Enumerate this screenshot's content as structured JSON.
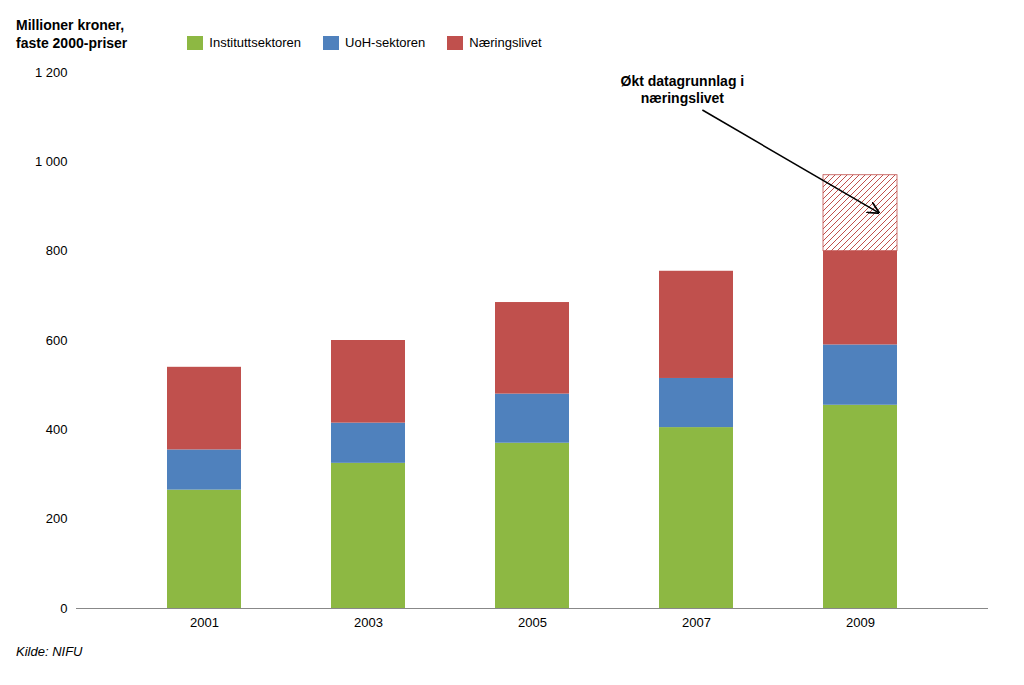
{
  "chart_data": {
    "type": "bar",
    "stacked": true,
    "ylabel": "Millioner kroner,\nfaste 2000-priser",
    "caption": "Kilde: NIFU",
    "categories": [
      "2001",
      "2003",
      "2005",
      "2007",
      "2009"
    ],
    "series": [
      {
        "name": "Instituttsektoren",
        "color": "#8db843",
        "values": [
          265,
          325,
          370,
          405,
          455
        ]
      },
      {
        "name": "UoH-sektoren",
        "color": "#4f81bd",
        "values": [
          90,
          90,
          110,
          110,
          135
        ]
      },
      {
        "name": "Næringslivet",
        "color": "#c0504d",
        "values": [
          185,
          185,
          205,
          240,
          210
        ]
      },
      {
        "color": "#c0504d",
        "values": [
          0,
          0,
          0,
          0,
          170
        ]
      }
    ],
    "annotations": [
      {
        "text": "Økt datagrunnlag i\nnæringslivet"
      }
    ],
    "ylim": [
      0,
      1200
    ],
    "yticks": [
      0,
      200,
      400,
      600,
      800,
      {
        "value": 1000,
        "label": "1 000"
      },
      {
        "value": 1200,
        "label": "1 200"
      }
    ],
    "legend": "upper left",
    "grid": false
  }
}
